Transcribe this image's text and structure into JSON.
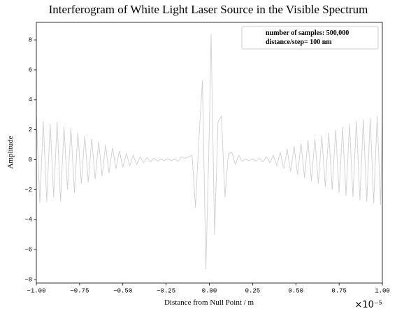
{
  "chart_data": {
    "type": "line",
    "title": "Interferogram of White Light Laser Source in the Visible Spectrum",
    "xlabel": "Distance from Null Point / m",
    "ylabel": "Amplitude",
    "x_offset_label": "×10⁻⁵",
    "legend_text": [
      "number of samples: 500,000",
      "distance/step= 100 nm"
    ],
    "x": [
      -1e-05,
      -9.8e-06,
      -9.6e-06,
      -9.4e-06,
      -9.2e-06,
      -9e-06,
      -8.8e-06,
      -8.6e-06,
      -8.4e-06,
      -8.2e-06,
      -8e-06,
      -7.8e-06,
      -7.6e-06,
      -7.4e-06,
      -7.2e-06,
      -7e-06,
      -6.8e-06,
      -6.6e-06,
      -6.4e-06,
      -6.2e-06,
      -6e-06,
      -5.8e-06,
      -5.6e-06,
      -5.4e-06,
      -5.2e-06,
      -5e-06,
      -4.8e-06,
      -4.6e-06,
      -4.4e-06,
      -4.2e-06,
      -4e-06,
      -3.8e-06,
      -3.6e-06,
      -3.4e-06,
      -3.2e-06,
      -3e-06,
      -2.8e-06,
      -2.6e-06,
      -2.4e-06,
      -2.2e-06,
      -2e-06,
      -1.8e-06,
      -1.6e-06,
      -1.4e-06,
      -1.2e-06,
      -1e-06,
      -8e-07,
      -6e-07,
      -4e-07,
      -2e-07,
      0,
      1e-07,
      3e-07,
      5e-07,
      7e-07,
      9e-07,
      1.1e-06,
      1.3e-06,
      1.5e-06,
      1.7e-06,
      1.9e-06,
      2.1e-06,
      2.3e-06,
      2.5e-06,
      2.7e-06,
      2.9e-06,
      3.1e-06,
      3.3e-06,
      3.5e-06,
      3.7e-06,
      3.9e-06,
      4.1e-06,
      4.3e-06,
      4.5e-06,
      4.7e-06,
      4.9e-06,
      5.1e-06,
      5.3e-06,
      5.5e-06,
      5.7e-06,
      5.9e-06,
      6.1e-06,
      6.3e-06,
      6.5e-06,
      6.7e-06,
      6.9e-06,
      7.1e-06,
      7.3e-06,
      7.5e-06,
      7.7e-06,
      7.9e-06,
      8.1e-06,
      8.3e-06,
      8.5e-06,
      8.7e-06,
      8.9e-06,
      9.1e-06,
      9.3e-06,
      9.5e-06,
      9.7e-06,
      9.9e-06,
      1e-05
    ],
    "series": [
      {
        "color": "#d3d3d3",
        "values": [
          3.0,
          -2.9,
          2.6,
          -2.8,
          2.4,
          -2.5,
          2.5,
          -2.8,
          2.2,
          -2.0,
          2.1,
          -2.2,
          1.8,
          -1.6,
          1.6,
          -1.5,
          1.4,
          -1.3,
          1.2,
          -1.1,
          1.0,
          -0.9,
          0.8,
          -0.6,
          0.6,
          -0.5,
          0.4,
          -0.4,
          0.3,
          -0.3,
          0.2,
          -0.2,
          0.15,
          -0.15,
          0.1,
          -0.1,
          0.05,
          -0.05,
          0.05,
          -0.05,
          0.05,
          -0.1,
          0.2,
          0.1,
          0.2,
          0.3,
          -3.2,
          1.5,
          5.3,
          -7.3,
          2.0,
          8.4,
          -5.0,
          2.5,
          2.9,
          -2.5,
          0.4,
          0.5,
          -0.3,
          0.3,
          -0.1,
          0.05,
          -0.05,
          0.05,
          -0.1,
          0.1,
          -0.15,
          0.2,
          -0.2,
          0.3,
          -0.4,
          0.5,
          -0.6,
          0.7,
          -0.8,
          0.9,
          -1.0,
          1.1,
          -1.2,
          1.3,
          -1.4,
          1.4,
          -1.6,
          1.6,
          -1.8,
          1.8,
          -2.0,
          2.0,
          -2.2,
          2.2,
          -2.4,
          2.4,
          -2.5,
          2.6,
          -2.7,
          2.7,
          -2.8,
          2.8,
          -2.9,
          2.9,
          -3.0,
          3.1
        ]
      }
    ],
    "xlim": [
      -1e-05,
      1e-05
    ],
    "xticks": [
      {
        "value": -1e-05,
        "label": "−1.00"
      },
      {
        "value": -7.5e-06,
        "label": "−0.75"
      },
      {
        "value": -5e-06,
        "label": "−0.50"
      },
      {
        "value": -2.5e-06,
        "label": "−0.25"
      },
      {
        "value": 0,
        "label": "0.00"
      },
      {
        "value": 2.5e-06,
        "label": "0.25"
      },
      {
        "value": 5e-06,
        "label": "0.50"
      },
      {
        "value": 7.5e-06,
        "label": "0.75"
      },
      {
        "value": 1e-05,
        "label": "1.00"
      }
    ],
    "ylim": [
      -8.23,
      9.17
    ],
    "yticks": [
      {
        "value": -8,
        "label": "−8"
      },
      {
        "value": -6,
        "label": "−6"
      },
      {
        "value": -4,
        "label": "−4"
      },
      {
        "value": -2,
        "label": "−2"
      },
      0,
      2,
      4,
      6,
      8
    ]
  }
}
